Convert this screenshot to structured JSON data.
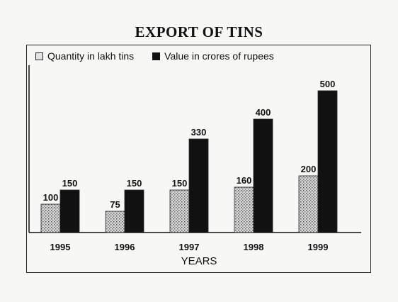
{
  "title": "EXPORT OF TINS",
  "chart_data": {
    "type": "bar",
    "title": "EXPORT OF TINS",
    "xlabel": "YEARS",
    "ylabel": "",
    "categories": [
      "1995",
      "1996",
      "1997",
      "1998",
      "1999"
    ],
    "series": [
      {
        "name": "Quantity in lakh tins",
        "values": [
          100,
          75,
          150,
          160,
          200
        ],
        "color": "#bdbdbd"
      },
      {
        "name": "Value in crores of rupees",
        "values": [
          150,
          150,
          330,
          400,
          500
        ],
        "color": "#111111"
      }
    ],
    "ylim": [
      0,
      520
    ],
    "grid": false,
    "legend_position": "top"
  }
}
